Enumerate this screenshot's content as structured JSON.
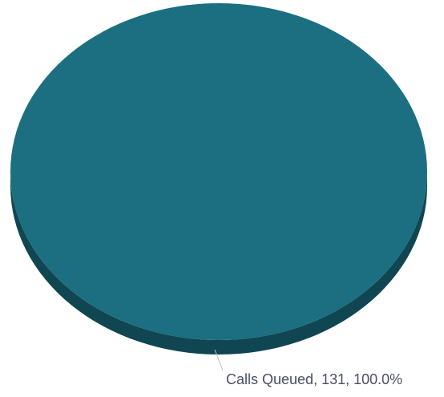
{
  "chart_data": {
    "type": "pie",
    "style": "3d",
    "title": "",
    "slices": [
      {
        "label": "Calls Queued",
        "value": 131,
        "percent": 100.0,
        "data_label": "Calls Queued, 131, 100.0%"
      }
    ],
    "colors": {
      "top": "#1b6f80",
      "side": "#104652",
      "connector": "#c0c0c0",
      "label_text": "#4a4f63"
    }
  }
}
